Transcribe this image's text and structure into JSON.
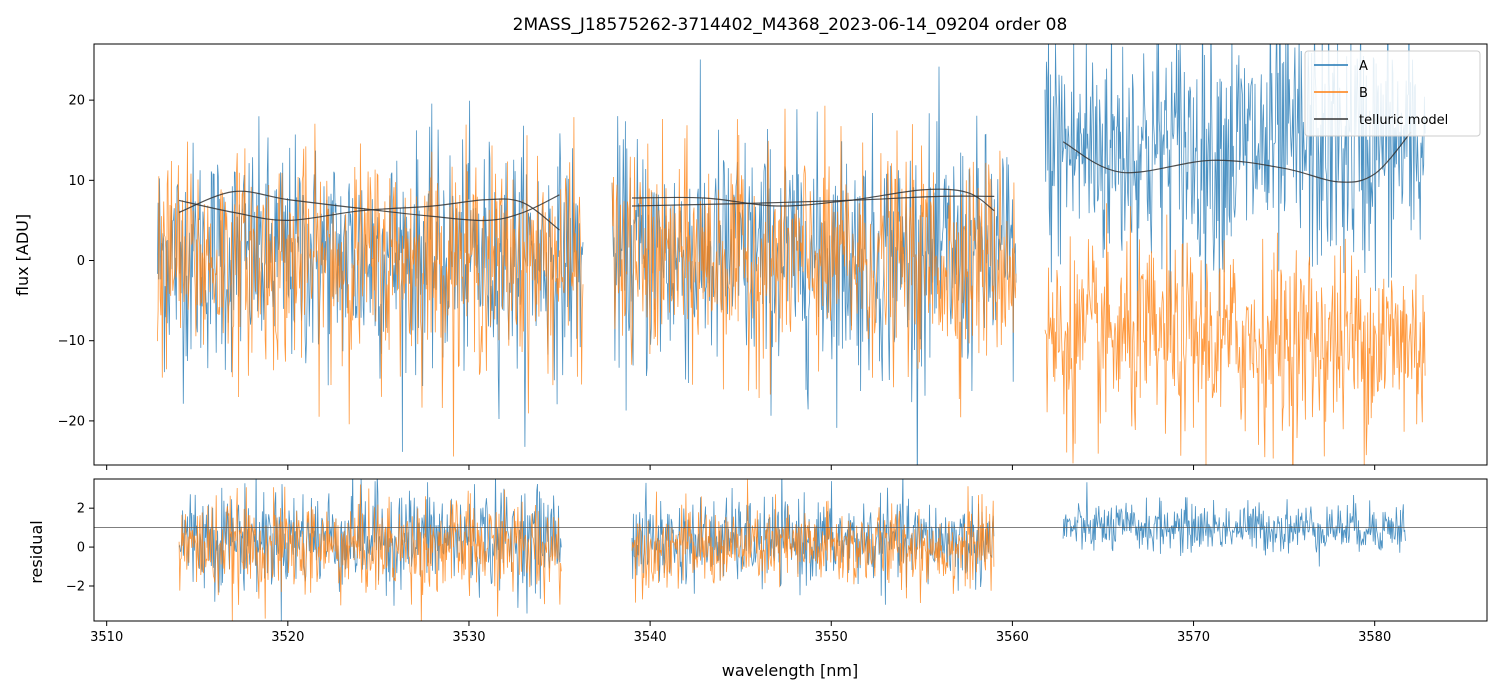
{
  "chart_data": {
    "type": "line",
    "title": "2MASS_J18575262-3714402_M4368_2023-06-14_09204  order 08",
    "xlabel": "wavelength [nm]",
    "xlim": [
      3509.3,
      3586.2
    ],
    "x_ticks": [
      3510,
      3520,
      3530,
      3540,
      3550,
      3560,
      3570,
      3580
    ],
    "x_tick_labels": [
      "3510",
      "3520",
      "3530",
      "3540",
      "3550",
      "3560",
      "3570",
      "3580"
    ],
    "legend": {
      "position": "upper-right",
      "entries": [
        "A",
        "B",
        "telluric model"
      ]
    },
    "colors": {
      "A": "#1f77b4",
      "B": "#ff7f0e",
      "telluric": "#333333"
    },
    "panels": {
      "flux": {
        "ylabel": "flux [ADU]",
        "ylim": [
          -25.5,
          27
        ],
        "y_ticks": [
          -20,
          -10,
          0,
          10,
          20
        ],
        "y_tick_labels": [
          "−20",
          "−10",
          "0",
          "10",
          "20"
        ],
        "series": [
          {
            "name": "A",
            "segments": [
              {
                "x": [
                  3512.8,
                  3536.3
                ],
                "center": 0.5,
                "noise": 7.0
              },
              {
                "x": [
                  3537.9,
                  3560.2
                ],
                "center": 0.5,
                "noise": 7.5
              },
              {
                "x": [
                  3561.8,
                  3582.8
                ],
                "center": 14.0,
                "noise": 8.0
              }
            ]
          },
          {
            "name": "B",
            "segments": [
              {
                "x": [
                  3512.8,
                  3536.3
                ],
                "center": 0.0,
                "noise": 6.5
              },
              {
                "x": [
                  3537.9,
                  3560.2
                ],
                "center": 0.0,
                "noise": 6.5
              },
              {
                "x": [
                  3561.8,
                  3582.8
                ],
                "center": -10.0,
                "noise": 6.0
              }
            ]
          },
          {
            "name": "telluric model",
            "curves": [
              {
                "x": [
                  3514.0,
                  3517.0,
                  3520.0,
                  3524.0,
                  3528.0,
                  3531.0,
                  3533.0,
                  3535.0
                ],
                "y": [
                  7.5,
                  6.0,
                  5.0,
                  6.2,
                  6.8,
                  7.6,
                  7.2,
                  3.8
                ]
              },
              {
                "x": [
                  3514.0,
                  3517.0,
                  3520.0,
                  3524.0,
                  3528.0,
                  3531.0,
                  3533.0,
                  3535.0
                ],
                "y": [
                  6.0,
                  8.6,
                  7.6,
                  6.5,
                  5.5,
                  5.0,
                  6.0,
                  8.2
                ]
              },
              {
                "x": [
                  3539.0,
                  3543.0,
                  3547.0,
                  3551.0,
                  3555.0,
                  3557.5,
                  3559.0
                ],
                "y": [
                  7.8,
                  7.8,
                  6.8,
                  7.5,
                  8.8,
                  8.5,
                  6.2
                ]
              },
              {
                "x": [
                  3539.0,
                  3545.0,
                  3551.0,
                  3556.0,
                  3559.0
                ],
                "y": [
                  6.8,
                  7.1,
                  7.5,
                  8.0,
                  8.0
                ]
              },
              {
                "x": [
                  3562.8,
                  3566.0,
                  3571.0,
                  3575.0,
                  3578.0,
                  3580.0,
                  3582.0
                ],
                "y": [
                  14.8,
                  11.0,
                  12.5,
                  11.5,
                  9.8,
                  10.8,
                  16.0
                ]
              }
            ]
          }
        ]
      },
      "residual": {
        "ylabel": "residual",
        "ylim": [
          -3.8,
          3.5
        ],
        "y_ticks": [
          -2,
          0,
          2
        ],
        "y_tick_labels": [
          "−2",
          "0",
          "2"
        ],
        "reference_line": 1.0,
        "series": [
          {
            "name": "A",
            "segments": [
              {
                "x": [
                  3514.0,
                  3535.1
                ],
                "center": 0.5,
                "noise": 1.3
              },
              {
                "x": [
                  3539.0,
                  3559.0
                ],
                "center": 0.3,
                "noise": 1.1
              },
              {
                "x": [
                  3562.8,
                  3581.7
                ],
                "center": 1.0,
                "noise": 0.65
              }
            ]
          },
          {
            "name": "B",
            "segments": [
              {
                "x": [
                  3514.0,
                  3535.1
                ],
                "center": 0.0,
                "noise": 1.25
              },
              {
                "x": [
                  3539.0,
                  3559.0
                ],
                "center": 0.0,
                "noise": 1.05
              }
            ]
          }
        ]
      }
    }
  }
}
